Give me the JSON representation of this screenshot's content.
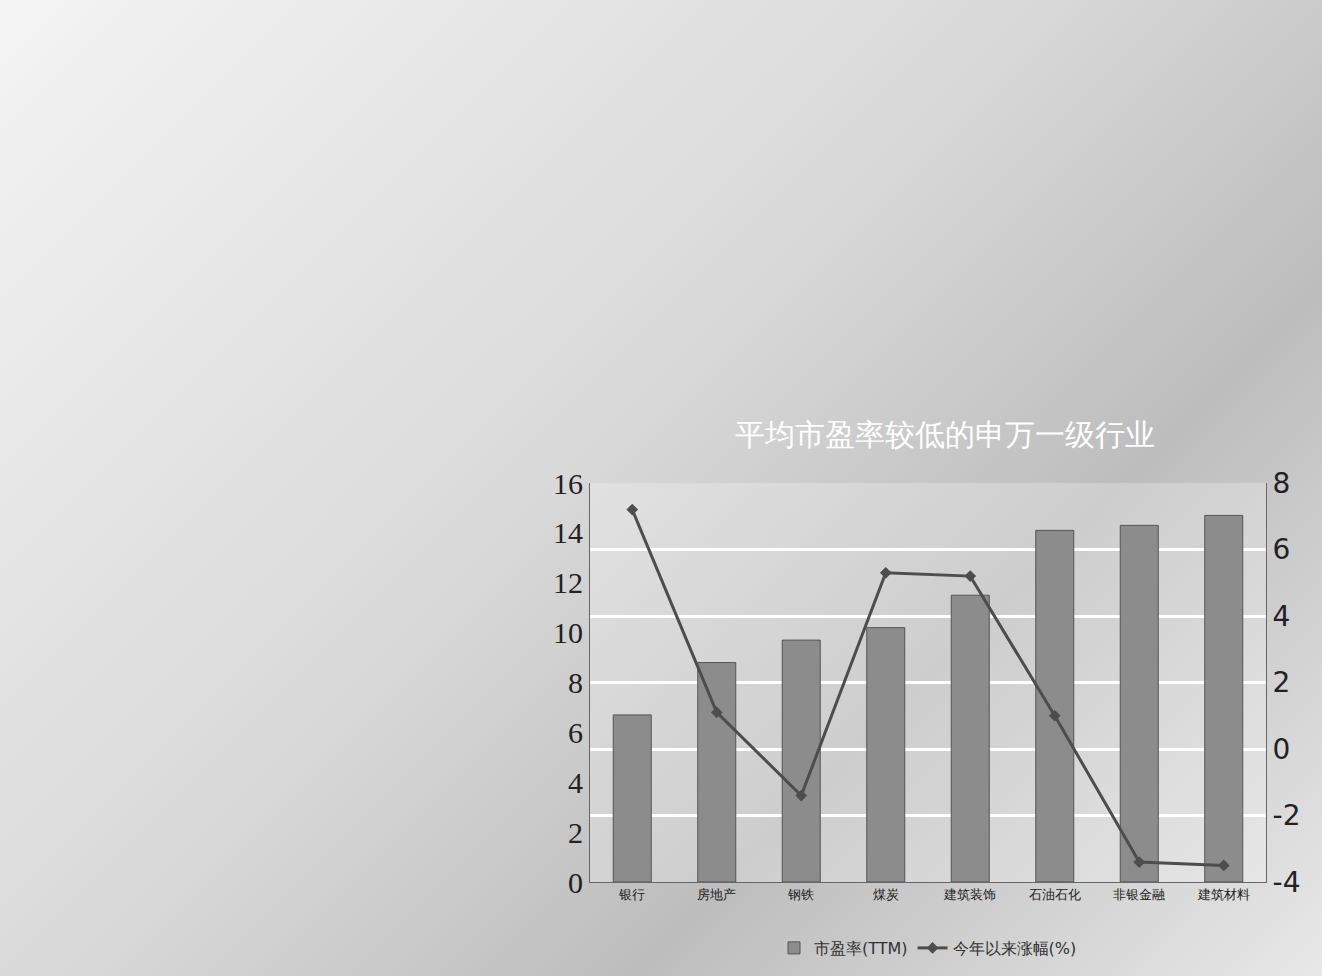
{
  "chart_data": {
    "type": "bar",
    "title": "平均市盈率较低的申万一级行业",
    "categories": [
      "银行",
      "房地产",
      "钢铁",
      "煤炭",
      "建筑装饰",
      "石油石化",
      "非银金融",
      "建筑材料"
    ],
    "series": [
      {
        "name": "市盈率(TTM)",
        "type": "bar",
        "color": "#8c8c8c",
        "values": [
          6.7,
          8.8,
          9.7,
          10.2,
          11.5,
          14.1,
          14.3,
          14.7
        ]
      },
      {
        "name": "今年以来涨幅(%)",
        "type": "line",
        "axis": "y2",
        "color": "#4d4d4d",
        "marker": "diamond",
        "line_style": "solid",
        "values": [
          7.2,
          1.1,
          -1.4,
          5.3,
          5.2,
          1.0,
          -3.4,
          -3.5
        ]
      }
    ],
    "ylim": [
      0,
      16
    ],
    "yticks": [
      0,
      2,
      4,
      6,
      8,
      10,
      12,
      14,
      16
    ],
    "y2lim": [
      -4,
      8
    ],
    "y2ticks": [
      -4,
      -2,
      0,
      2,
      4,
      6,
      8
    ],
    "grid": true,
    "legend": "bottom"
  }
}
